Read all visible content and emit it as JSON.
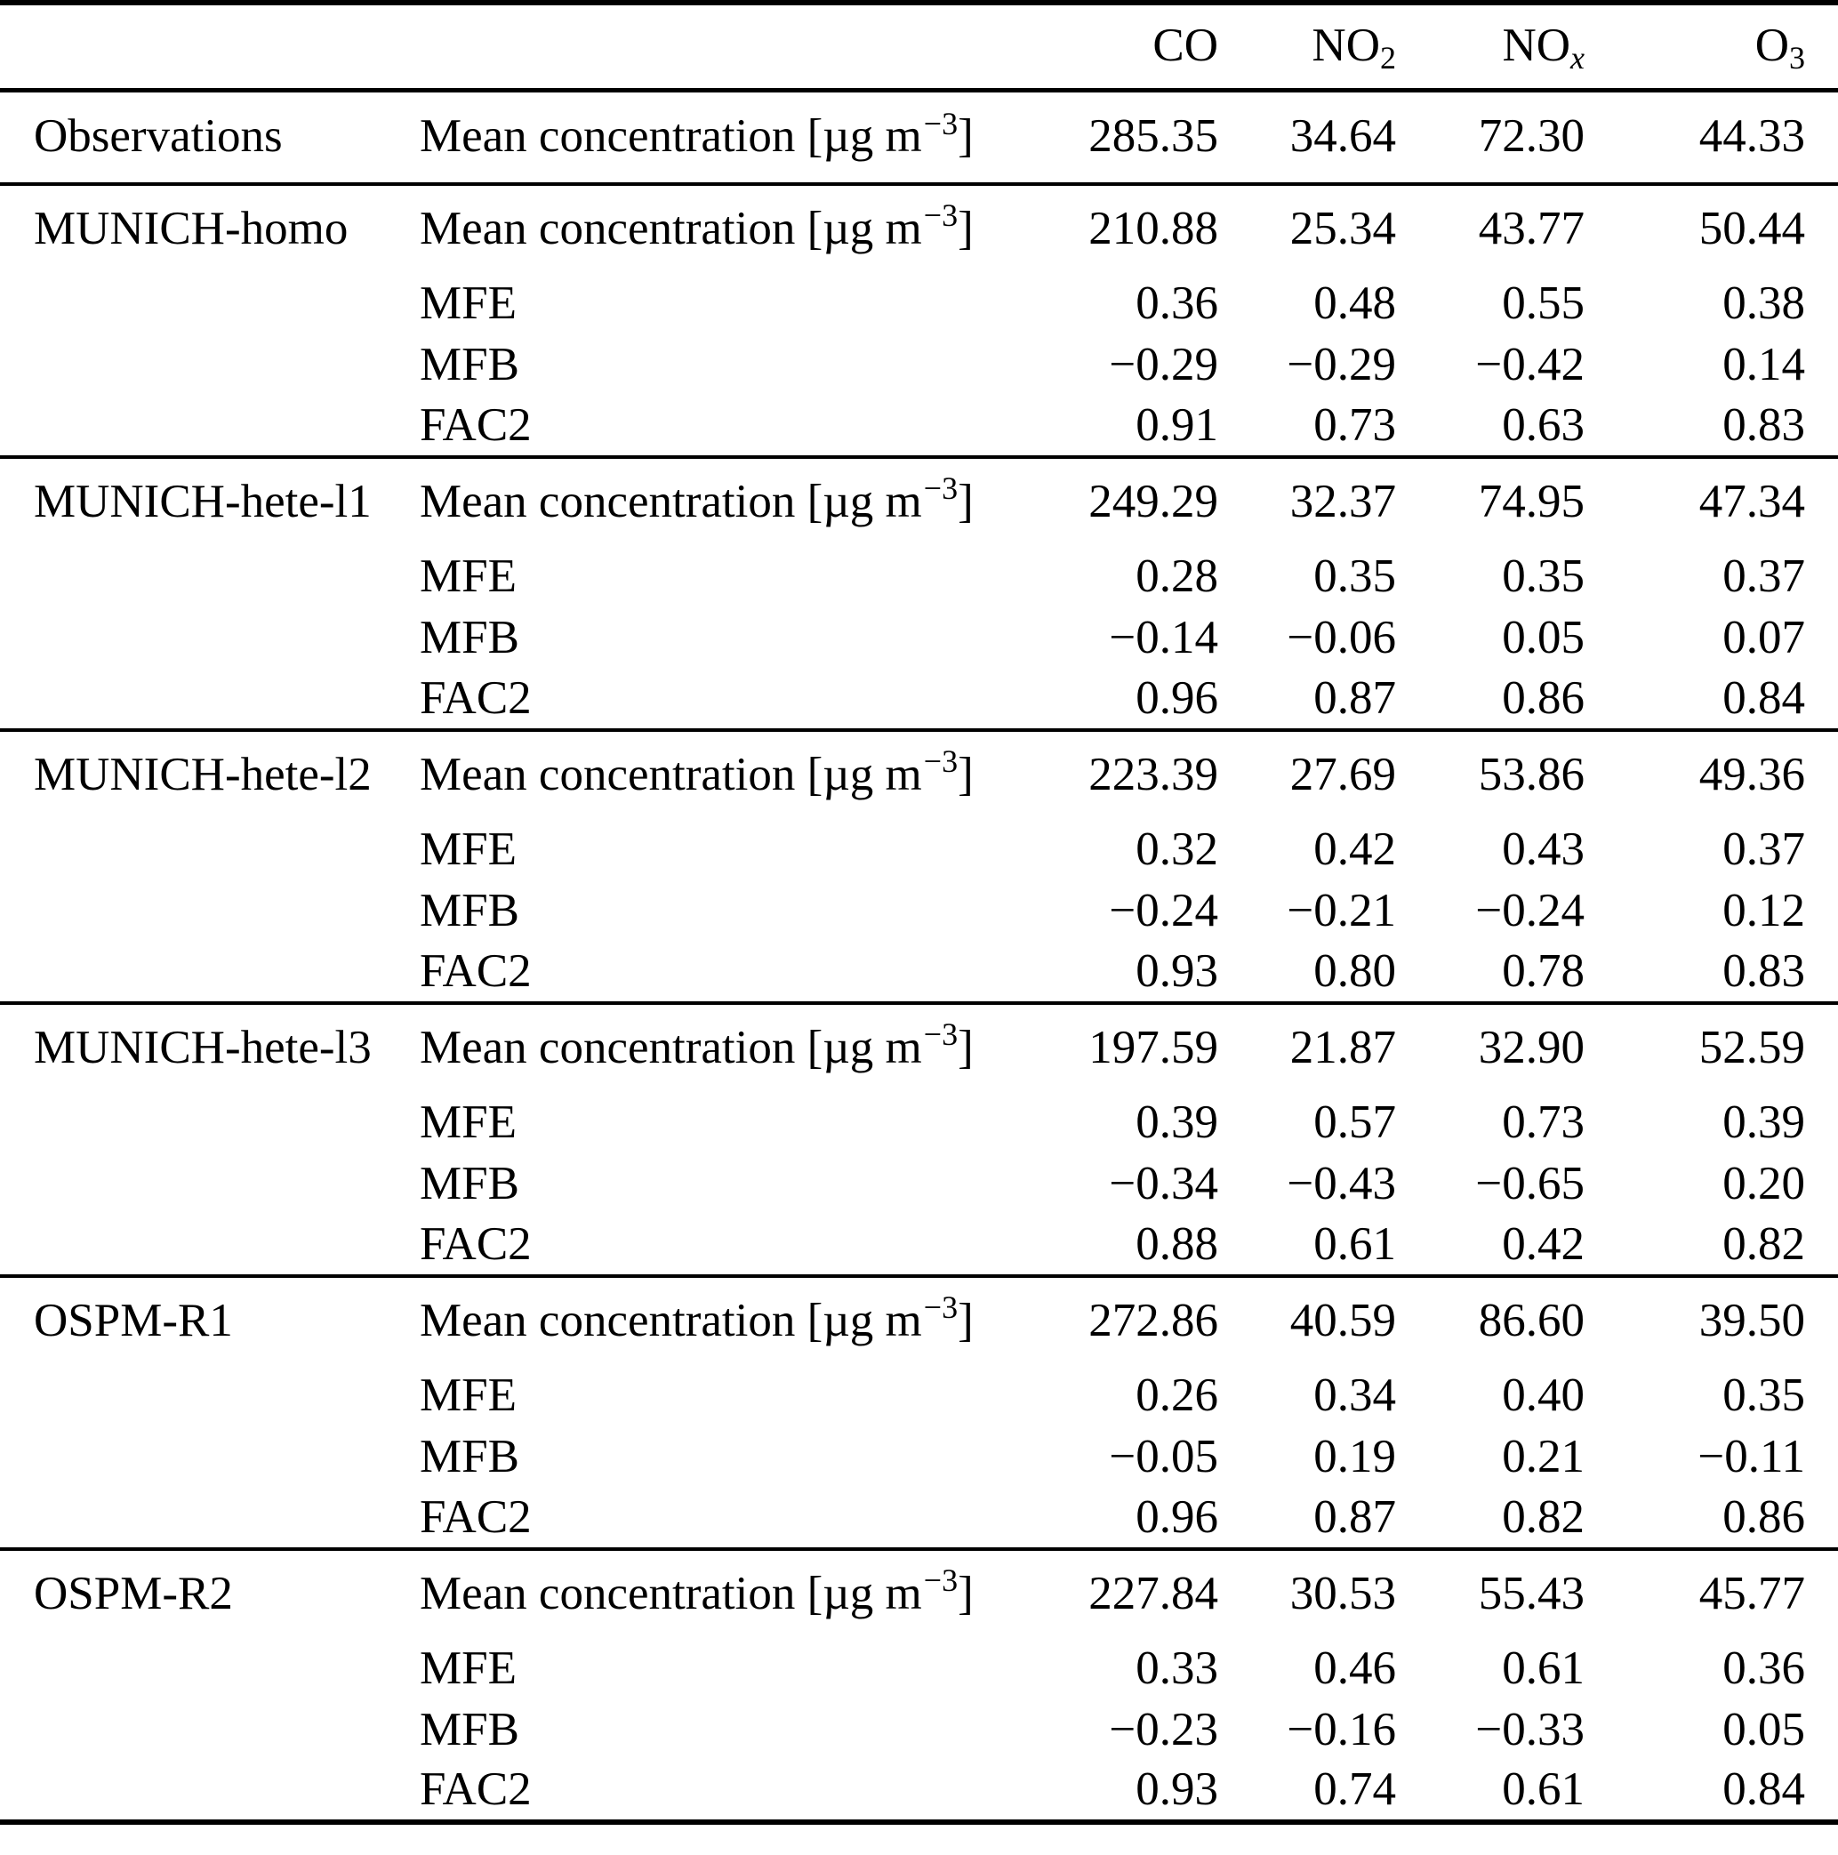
{
  "table": {
    "header": {
      "corner_model": "",
      "corner_metric": "",
      "columns": [
        {
          "base": "CO",
          "sub": ""
        },
        {
          "base": "NO",
          "sub": "2"
        },
        {
          "base": "NO",
          "sub": "x"
        },
        {
          "base": "O",
          "sub": "3"
        }
      ]
    },
    "metric_labels": {
      "mean_prefix": "Mean concentration [µg m",
      "mean_sup": "−3",
      "mean_suffix": "]",
      "mfe": "MFE",
      "mfb": "MFB",
      "fac2": "FAC2"
    },
    "sections": [
      {
        "name": "Observations",
        "rows": [
          {
            "metric": "mean",
            "values": [
              "285.35",
              "34.64",
              "72.30",
              "44.33"
            ]
          }
        ]
      },
      {
        "name": "MUNICH-homo",
        "rows": [
          {
            "metric": "mean",
            "values": [
              "210.88",
              "25.34",
              "43.77",
              "50.44"
            ]
          },
          {
            "metric": "mfe",
            "values": [
              "0.36",
              "0.48",
              "0.55",
              "0.38"
            ]
          },
          {
            "metric": "mfb",
            "values": [
              "−0.29",
              "−0.29",
              "−0.42",
              "0.14"
            ]
          },
          {
            "metric": "fac2",
            "values": [
              "0.91",
              "0.73",
              "0.63",
              "0.83"
            ]
          }
        ]
      },
      {
        "name": "MUNICH-hete-l1",
        "rows": [
          {
            "metric": "mean",
            "values": [
              "249.29",
              "32.37",
              "74.95",
              "47.34"
            ]
          },
          {
            "metric": "mfe",
            "values": [
              "0.28",
              "0.35",
              "0.35",
              "0.37"
            ]
          },
          {
            "metric": "mfb",
            "values": [
              "−0.14",
              "−0.06",
              "0.05",
              "0.07"
            ]
          },
          {
            "metric": "fac2",
            "values": [
              "0.96",
              "0.87",
              "0.86",
              "0.84"
            ]
          }
        ]
      },
      {
        "name": "MUNICH-hete-l2",
        "rows": [
          {
            "metric": "mean",
            "values": [
              "223.39",
              "27.69",
              "53.86",
              "49.36"
            ]
          },
          {
            "metric": "mfe",
            "values": [
              "0.32",
              "0.42",
              "0.43",
              "0.37"
            ]
          },
          {
            "metric": "mfb",
            "values": [
              "−0.24",
              "−0.21",
              "−0.24",
              "0.12"
            ]
          },
          {
            "metric": "fac2",
            "values": [
              "0.93",
              "0.80",
              "0.78",
              "0.83"
            ]
          }
        ]
      },
      {
        "name": "MUNICH-hete-l3",
        "rows": [
          {
            "metric": "mean",
            "values": [
              "197.59",
              "21.87",
              "32.90",
              "52.59"
            ]
          },
          {
            "metric": "mfe",
            "values": [
              "0.39",
              "0.57",
              "0.73",
              "0.39"
            ]
          },
          {
            "metric": "mfb",
            "values": [
              "−0.34",
              "−0.43",
              "−0.65",
              "0.20"
            ]
          },
          {
            "metric": "fac2",
            "values": [
              "0.88",
              "0.61",
              "0.42",
              "0.82"
            ]
          }
        ]
      },
      {
        "name": "OSPM-R1",
        "rows": [
          {
            "metric": "mean",
            "values": [
              "272.86",
              "40.59",
              "86.60",
              "39.50"
            ]
          },
          {
            "metric": "mfe",
            "values": [
              "0.26",
              "0.34",
              "0.40",
              "0.35"
            ]
          },
          {
            "metric": "mfb",
            "values": [
              "−0.05",
              "0.19",
              "0.21",
              "−0.11"
            ]
          },
          {
            "metric": "fac2",
            "values": [
              "0.96",
              "0.87",
              "0.82",
              "0.86"
            ]
          }
        ]
      },
      {
        "name": "OSPM-R2",
        "rows": [
          {
            "metric": "mean",
            "values": [
              "227.84",
              "30.53",
              "55.43",
              "45.77"
            ]
          },
          {
            "metric": "mfe",
            "values": [
              "0.33",
              "0.46",
              "0.61",
              "0.36"
            ]
          },
          {
            "metric": "mfb",
            "values": [
              "−0.23",
              "−0.16",
              "−0.33",
              "0.05"
            ]
          },
          {
            "metric": "fac2",
            "values": [
              "0.93",
              "0.74",
              "0.61",
              "0.84"
            ]
          }
        ]
      }
    ]
  }
}
